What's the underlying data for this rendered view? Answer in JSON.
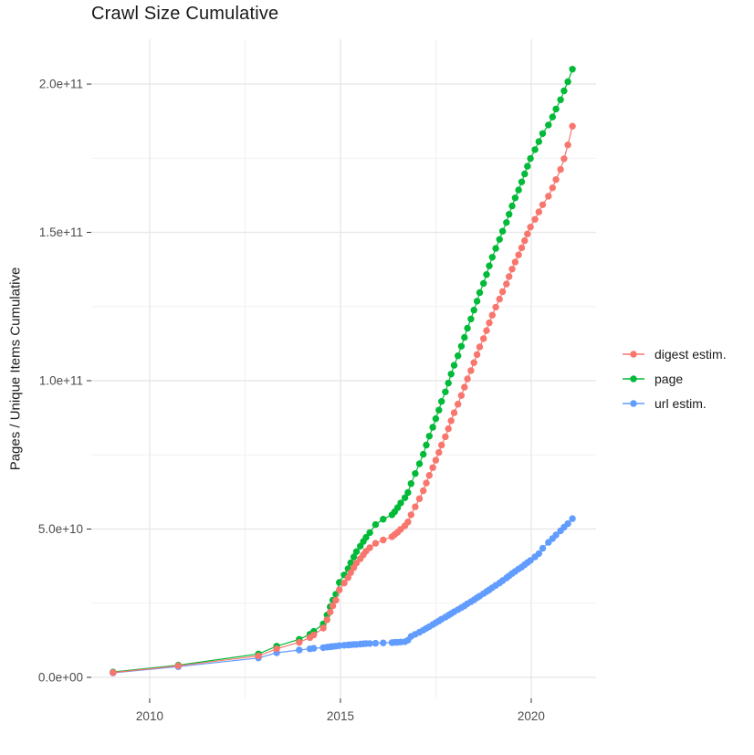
{
  "title": "Crawl Size Cumulative",
  "ylabel": "Pages / Unique Items Cumulative",
  "legend": {
    "position": "right",
    "items": [
      {
        "label": "digest estim.",
        "color": "#F8766D"
      },
      {
        "label": "page",
        "color": "#00BA38"
      },
      {
        "label": "url estim.",
        "color": "#619CFF"
      }
    ]
  },
  "colors": {
    "digest": "#F8766D",
    "page": "#00BA38",
    "url": "#619CFF",
    "grid_major": "#e8e8e8",
    "grid_minor": "#efefef",
    "tick_mark": "#333333",
    "tick_text": "#4d4d4d",
    "background": "#ffffff"
  },
  "chart_data": {
    "type": "line",
    "title": "Crawl Size Cumulative",
    "xlabel": "",
    "ylabel": "Pages / Unique Items Cumulative",
    "grid": "on",
    "legend_position": "right",
    "y_values_unit": "1e9",
    "xlim": [
      2008.47,
      2021.7
    ],
    "ylim_billions": [
      -7.1,
      215.1
    ],
    "x_ticks": [
      {
        "value": 2010,
        "label": "2010"
      },
      {
        "value": 2015,
        "label": "2015"
      },
      {
        "value": 2020,
        "label": "2020"
      }
    ],
    "x_minor": [
      2012.5,
      2017.5
    ],
    "y_ticks": [
      {
        "value": 0,
        "label": "0.0e+00"
      },
      {
        "value": 50,
        "label": "5.0e+10"
      },
      {
        "value": 100,
        "label": "1.0e+11"
      },
      {
        "value": 150,
        "label": "1.5e+11"
      },
      {
        "value": 200,
        "label": "2.0e+11"
      }
    ],
    "y_minor": [
      25,
      75,
      125,
      175
    ],
    "x": [
      2009.04,
      2010.75,
      2012.85,
      2013.33,
      2013.92,
      2014.2,
      2014.3,
      2014.55,
      2014.65,
      2014.73,
      2014.8,
      2014.88,
      2014.97,
      2015.1,
      2015.2,
      2015.27,
      2015.35,
      2015.42,
      2015.52,
      2015.6,
      2015.67,
      2015.77,
      2015.92,
      2016.12,
      2016.35,
      2016.42,
      2016.5,
      2016.58,
      2016.69,
      2016.77,
      2016.85,
      2016.96,
      2017.07,
      2017.17,
      2017.25,
      2017.33,
      2017.42,
      2017.5,
      2017.58,
      2017.65,
      2017.75,
      2017.83,
      2017.9,
      2017.98,
      2018.08,
      2018.17,
      2018.25,
      2018.33,
      2018.42,
      2018.5,
      2018.58,
      2018.65,
      2018.75,
      2018.83,
      2018.9,
      2018.98,
      2019.07,
      2019.17,
      2019.25,
      2019.35,
      2019.42,
      2019.5,
      2019.58,
      2019.67,
      2019.75,
      2019.83,
      2019.9,
      2019.98,
      2020.1,
      2020.2,
      2020.3,
      2020.45,
      2020.56,
      2020.65,
      2020.77,
      2020.86,
      2020.96,
      2021.08
    ],
    "series": [
      {
        "name": "digest estim.",
        "color": "#F8766D",
        "values_billions": [
          1.6,
          3.9,
          7.2,
          9.6,
          11.8,
          13.4,
          14.3,
          16.6,
          19.4,
          22.0,
          24.1,
          26.0,
          29.5,
          31.8,
          33.6,
          35.3,
          37.0,
          38.5,
          40.0,
          41.3,
          42.5,
          43.7,
          45.2,
          46.3,
          47.4,
          48.1,
          48.9,
          49.9,
          51.1,
          52.4,
          54.8,
          57.5,
          60.2,
          62.9,
          65.5,
          68.1,
          70.7,
          73.2,
          75.8,
          78.3,
          81.1,
          83.8,
          86.5,
          89.2,
          92.1,
          95.0,
          97.8,
          100.6,
          103.4,
          106.1,
          108.8,
          111.4,
          114.2,
          116.9,
          119.5,
          122.1,
          124.8,
          127.5,
          130.0,
          132.6,
          135.1,
          137.6,
          140.0,
          142.4,
          144.8,
          147.2,
          149.5,
          151.8,
          154.4,
          156.9,
          159.3,
          162.2,
          165.0,
          167.8,
          171.2,
          174.8,
          179.5,
          185.8
        ]
      },
      {
        "name": "page",
        "color": "#00BA38",
        "values_billions": [
          1.8,
          4.1,
          7.9,
          10.5,
          12.8,
          14.5,
          15.5,
          18.0,
          21.0,
          23.8,
          26.0,
          28.0,
          32.0,
          34.5,
          36.6,
          38.6,
          40.6,
          42.4,
          44.2,
          45.8,
          47.2,
          48.8,
          51.5,
          53.3,
          54.8,
          55.8,
          57.2,
          58.8,
          60.5,
          62.3,
          65.3,
          68.7,
          72.0,
          75.2,
          78.3,
          81.3,
          84.3,
          87.2,
          90.1,
          93.0,
          96.2,
          99.2,
          102.2,
          105.2,
          108.4,
          111.6,
          114.6,
          117.7,
          120.8,
          123.8,
          126.8,
          129.7,
          132.8,
          135.8,
          138.7,
          141.6,
          144.6,
          147.6,
          150.4,
          153.3,
          156.1,
          158.9,
          161.6,
          164.3,
          167.0,
          169.7,
          172.3,
          174.9,
          177.9,
          180.6,
          183.3,
          186.2,
          188.9,
          191.6,
          194.7,
          197.7,
          200.8,
          205.0
        ]
      },
      {
        "name": "url estim.",
        "color": "#619CFF",
        "values_billions": [
          1.5,
          3.6,
          6.5,
          8.3,
          9.2,
          9.6,
          9.8,
          10.0,
          10.2,
          10.3,
          10.4,
          10.5,
          10.7,
          10.8,
          10.9,
          11.0,
          11.1,
          11.1,
          11.2,
          11.3,
          11.4,
          11.4,
          11.5,
          11.6,
          11.7,
          11.8,
          11.8,
          11.9,
          12.0,
          12.5,
          13.8,
          14.5,
          15.2,
          15.9,
          16.5,
          17.1,
          17.8,
          18.4,
          19.0,
          19.6,
          20.3,
          20.9,
          21.5,
          22.1,
          22.8,
          23.5,
          24.1,
          24.8,
          25.5,
          26.1,
          26.8,
          27.4,
          28.2,
          28.9,
          29.5,
          30.2,
          31.0,
          31.8,
          32.6,
          33.5,
          34.2,
          35.0,
          35.7,
          36.5,
          37.2,
          38.0,
          38.7,
          39.4,
          40.6,
          41.7,
          43.5,
          45.5,
          46.8,
          48.0,
          49.4,
          50.6,
          51.8,
          53.5
        ]
      }
    ]
  }
}
